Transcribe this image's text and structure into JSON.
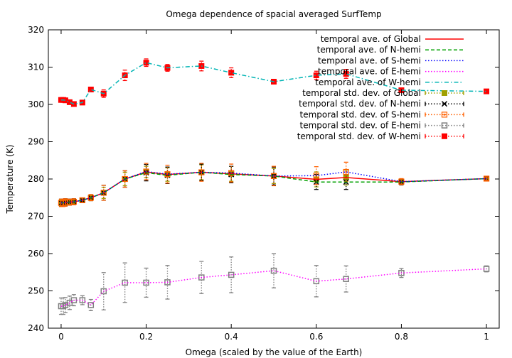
{
  "chart_data": {
    "type": "line",
    "title": "Omega dependence of spacial averaged SurfTemp",
    "xlabel": "Omega (scaled by the value of the Earth)",
    "ylabel": "Temperature (K)",
    "xlim": [
      -0.03,
      1.03
    ],
    "ylim": [
      240,
      320
    ],
    "xticks": [
      0,
      0.2,
      0.4,
      0.6,
      0.8,
      1
    ],
    "xtick_labels": [
      "0",
      "0.2",
      "0.4",
      "0.6",
      "0.8",
      "1"
    ],
    "yticks": [
      240,
      250,
      260,
      270,
      280,
      290,
      300,
      310,
      320
    ],
    "ytick_labels": [
      "240",
      "250",
      "260",
      "270",
      "280",
      "290",
      "300",
      "310",
      "320"
    ],
    "grid": false,
    "legend_position": "top-right",
    "x": [
      0,
      0.005,
      0.01,
      0.02,
      0.03,
      0.05,
      0.07,
      0.1,
      0.15,
      0.2,
      0.25,
      0.33,
      0.4,
      0.5,
      0.6,
      0.67,
      0.8,
      1.0
    ],
    "series": [
      {
        "name": "temporal ave. of Global",
        "color": "#ff0000",
        "dash": "solid",
        "values": [
          273.6,
          273.6,
          273.7,
          273.8,
          273.9,
          274.3,
          275.0,
          276.3,
          280.0,
          281.9,
          281.2,
          281.8,
          281.4,
          280.8,
          279.9,
          280.4,
          279.3,
          280.1
        ]
      },
      {
        "name": "temporal ave. of N-hemi",
        "color": "#00a000",
        "dash": "dashed",
        "values": [
          273.6,
          273.6,
          273.7,
          273.8,
          273.9,
          274.3,
          275.0,
          276.3,
          280.0,
          281.7,
          281.0,
          281.8,
          281.2,
          280.8,
          279.2,
          279.2,
          279.2,
          280.1
        ]
      },
      {
        "name": "temporal ave. of S-hemi",
        "color": "#0000ff",
        "dash": "dotted",
        "values": [
          273.6,
          273.6,
          273.7,
          273.8,
          273.9,
          274.3,
          275.0,
          276.3,
          280.0,
          282.0,
          281.3,
          281.8,
          281.6,
          280.8,
          280.9,
          281.9,
          279.3,
          280.1
        ]
      },
      {
        "name": "temporal ave. of E-hemi",
        "color": "#ff00ff",
        "dash": "dotted",
        "values": [
          245.9,
          245.9,
          246.2,
          246.8,
          247.5,
          247.5,
          246.2,
          249.9,
          252.2,
          252.2,
          252.3,
          253.6,
          254.3,
          255.4,
          252.6,
          253.2,
          254.8,
          255.9
        ]
      },
      {
        "name": "temporal ave. of W-hemi",
        "color": "#00b4b4",
        "dash": "dashdot",
        "values": [
          301.2,
          301.2,
          301.1,
          300.6,
          300.1,
          300.5,
          304.0,
          302.9,
          307.8,
          311.2,
          309.8,
          310.3,
          308.5,
          306.1,
          307.8,
          308.2,
          303.8,
          303.5
        ]
      }
    ],
    "error_series": [
      {
        "name": "temporal std. dev. of Global",
        "color": "#a0a000",
        "marker": "filled-square",
        "values": [
          273.6,
          273.6,
          273.7,
          273.8,
          273.9,
          274.3,
          275.0,
          276.3,
          280.0,
          281.9,
          281.2,
          281.8,
          281.4,
          280.8,
          279.9,
          280.4,
          279.3,
          280.1
        ],
        "err": [
          0.8,
          0.8,
          0.8,
          0.8,
          0.7,
          0.6,
          0.8,
          1.5,
          1.8,
          1.5,
          1.8,
          2.0,
          2.0,
          2.0,
          2.0,
          2.0,
          0.6,
          0.3
        ]
      },
      {
        "name": "temporal std. dev. of N-hemi",
        "color": "#000000",
        "marker": "cross",
        "values": [
          273.6,
          273.6,
          273.7,
          273.8,
          273.9,
          274.3,
          275.0,
          276.3,
          280.0,
          281.7,
          281.0,
          281.8,
          281.2,
          280.8,
          279.2,
          279.2,
          279.2,
          280.1
        ],
        "err": [
          1.0,
          1.0,
          1.0,
          0.8,
          0.8,
          0.6,
          0.8,
          2.0,
          2.2,
          2.2,
          2.2,
          2.2,
          2.2,
          2.4,
          2.0,
          2.0,
          0.8,
          0.4
        ]
      },
      {
        "name": "temporal std. dev. of S-hemi",
        "color": "#ff6000",
        "marker": "square",
        "values": [
          273.6,
          273.6,
          273.7,
          273.8,
          273.9,
          274.3,
          275.0,
          276.3,
          280.0,
          282.0,
          281.3,
          281.8,
          281.6,
          280.8,
          280.9,
          281.9,
          279.3,
          280.1
        ],
        "err": [
          1.0,
          1.0,
          1.0,
          0.8,
          0.8,
          0.6,
          0.8,
          2.0,
          2.2,
          2.2,
          2.4,
          2.4,
          2.4,
          2.6,
          2.4,
          2.6,
          0.8,
          0.4
        ]
      },
      {
        "name": "temporal std. dev. of E-hemi",
        "color": "#808080",
        "marker": "open-square",
        "values": [
          245.9,
          245.9,
          246.2,
          246.8,
          247.5,
          247.5,
          246.2,
          249.9,
          252.2,
          252.2,
          252.3,
          253.6,
          254.3,
          255.4,
          252.6,
          253.2,
          254.8,
          255.9
        ],
        "err": [
          2.2,
          2.2,
          2.0,
          1.8,
          1.5,
          1.2,
          1.5,
          5.0,
          5.3,
          3.9,
          4.5,
          4.3,
          4.8,
          4.6,
          4.2,
          3.5,
          1.2,
          0.8
        ]
      },
      {
        "name": "temporal std. dev. of W-hemi",
        "color": "#ff0000",
        "marker": "filled-square",
        "values": [
          301.2,
          301.2,
          301.1,
          300.6,
          300.1,
          300.5,
          304.0,
          302.9,
          307.8,
          311.2,
          309.8,
          310.3,
          308.5,
          306.1,
          307.8,
          308.2,
          303.8,
          303.5
        ],
        "err": [
          0.3,
          0.3,
          0.3,
          0.3,
          0.3,
          0.3,
          0.6,
          1.0,
          1.4,
          1.0,
          0.9,
          1.3,
          1.3,
          0.6,
          1.1,
          1.2,
          0.4,
          0.3
        ]
      }
    ]
  }
}
